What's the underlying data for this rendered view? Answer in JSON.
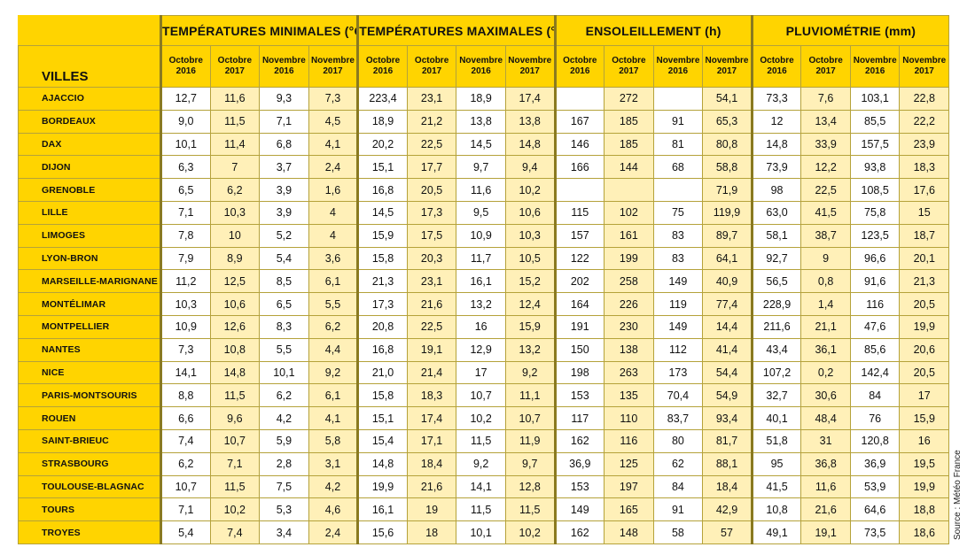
{
  "header": {
    "villes_label": "VILLES",
    "groups": [
      {
        "title": "TEMPÉRATURES MINIMALES (°C)"
      },
      {
        "title": "TEMPÉRATURES MAXIMALES (°C)"
      },
      {
        "title": "ENSOLEILLEMENT (h)"
      },
      {
        "title": "PLUVIOMÉTRIE (mm)"
      }
    ],
    "periods": [
      {
        "month": "Octobre",
        "year": "2016"
      },
      {
        "month": "Octobre",
        "year": "2017"
      },
      {
        "month": "Novembre",
        "year": "2016"
      },
      {
        "month": "Novembre",
        "year": "2017"
      }
    ]
  },
  "rows": [
    {
      "city": "AJACCIO",
      "vals": [
        "12,7",
        "11,6",
        "9,3",
        "7,3",
        "223,4",
        "23,1",
        "18,9",
        "17,4",
        "",
        "272",
        "",
        "54,1",
        "73,3",
        "7,6",
        "103,1",
        "22,8"
      ]
    },
    {
      "city": "BORDEAUX",
      "vals": [
        "9,0",
        "11,5",
        "7,1",
        "4,5",
        "18,9",
        "21,2",
        "13,8",
        "13,8",
        "167",
        "185",
        "91",
        "65,3",
        "12",
        "13,4",
        "85,5",
        "22,2"
      ]
    },
    {
      "city": "DAX",
      "vals": [
        "10,1",
        "11,4",
        "6,8",
        "4,1",
        "20,2",
        "22,5",
        "14,5",
        "14,8",
        "146",
        "185",
        "81",
        "80,8",
        "14,8",
        "33,9",
        "157,5",
        "23,9"
      ]
    },
    {
      "city": "DIJON",
      "vals": [
        "6,3",
        "7",
        "3,7",
        "2,4",
        "15,1",
        "17,7",
        "9,7",
        "9,4",
        "166",
        "144",
        "68",
        "58,8",
        "73,9",
        "12,2",
        "93,8",
        "18,3"
      ]
    },
    {
      "city": "GRENOBLE",
      "vals": [
        "6,5",
        "6,2",
        "3,9",
        "1,6",
        "16,8",
        "20,5",
        "11,6",
        "10,2",
        "",
        "",
        "",
        "71,9",
        "98",
        "22,5",
        "108,5",
        "17,6"
      ]
    },
    {
      "city": "LILLE",
      "vals": [
        "7,1",
        "10,3",
        "3,9",
        "4",
        "14,5",
        "17,3",
        "9,5",
        "10,6",
        "115",
        "102",
        "75",
        "119,9",
        "63,0",
        "41,5",
        "75,8",
        "15"
      ]
    },
    {
      "city": "LIMOGES",
      "vals": [
        "7,8",
        "10",
        "5,2",
        "4",
        "15,9",
        "17,5",
        "10,9",
        "10,3",
        "157",
        "161",
        "83",
        "89,7",
        "58,1",
        "38,7",
        "123,5",
        "18,7"
      ]
    },
    {
      "city": "LYON-BRON",
      "vals": [
        "7,9",
        "8,9",
        "5,4",
        "3,6",
        "15,8",
        "20,3",
        "11,7",
        "10,5",
        "122",
        "199",
        "83",
        "64,1",
        "92,7",
        "9",
        "96,6",
        "20,1"
      ]
    },
    {
      "city": "MARSEILLE-MARIGNANE",
      "vals": [
        "11,2",
        "12,5",
        "8,5",
        "6,1",
        "21,3",
        "23,1",
        "16,1",
        "15,2",
        "202",
        "258",
        "149",
        "40,9",
        "56,5",
        "0,8",
        "91,6",
        "21,3"
      ]
    },
    {
      "city": "MONTÉLIMAR",
      "vals": [
        "10,3",
        "10,6",
        "6,5",
        "5,5",
        "17,3",
        "21,6",
        "13,2",
        "12,4",
        "164",
        "226",
        "119",
        "77,4",
        "228,9",
        "1,4",
        "116",
        "20,5"
      ]
    },
    {
      "city": "MONTPELLIER",
      "vals": [
        "10,9",
        "12,6",
        "8,3",
        "6,2",
        "20,8",
        "22,5",
        "16",
        "15,9",
        "191",
        "230",
        "149",
        "14,4",
        "211,6",
        "21,1",
        "47,6",
        "19,9"
      ]
    },
    {
      "city": "NANTES",
      "vals": [
        "7,3",
        "10,8",
        "5,5",
        "4,4",
        "16,8",
        "19,1",
        "12,9",
        "13,2",
        "150",
        "138",
        "112",
        "41,4",
        "43,4",
        "36,1",
        "85,6",
        "20,6"
      ]
    },
    {
      "city": "NICE",
      "vals": [
        "14,1",
        "14,8",
        "10,1",
        "9,2",
        "21,0",
        "21,4",
        "17",
        "9,2",
        "198",
        "263",
        "173",
        "54,4",
        "107,2",
        "0,2",
        "142,4",
        "20,5"
      ]
    },
    {
      "city": "PARIS-MONTSOURIS",
      "vals": [
        "8,8",
        "11,5",
        "6,2",
        "6,1",
        "15,8",
        "18,3",
        "10,7",
        "11,1",
        "153",
        "135",
        "70,4",
        "54,9",
        "32,7",
        "30,6",
        "84",
        "17"
      ]
    },
    {
      "city": "ROUEN",
      "vals": [
        "6,6",
        "9,6",
        "4,2",
        "4,1",
        "15,1",
        "17,4",
        "10,2",
        "10,7",
        "117",
        "110",
        "83,7",
        "93,4",
        "40,1",
        "48,4",
        "76",
        "15,9"
      ]
    },
    {
      "city": "SAINT-BRIEUC",
      "vals": [
        "7,4",
        "10,7",
        "5,9",
        "5,8",
        "15,4",
        "17,1",
        "11,5",
        "11,9",
        "162",
        "116",
        "80",
        "81,7",
        "51,8",
        "31",
        "120,8",
        "16"
      ]
    },
    {
      "city": "STRASBOURG",
      "vals": [
        "6,2",
        "7,1",
        "2,8",
        "3,1",
        "14,8",
        "18,4",
        "9,2",
        "9,7",
        "36,9",
        "125",
        "62",
        "88,1",
        "95",
        "36,8",
        "36,9",
        "19,5"
      ]
    },
    {
      "city": "TOULOUSE-BLAGNAC",
      "vals": [
        "10,7",
        "11,5",
        "7,5",
        "4,2",
        "19,9",
        "21,6",
        "14,1",
        "12,8",
        "153",
        "197",
        "84",
        "18,4",
        "41,5",
        "11,6",
        "53,9",
        "19,9"
      ]
    },
    {
      "city": "TOURS",
      "vals": [
        "7,1",
        "10,2",
        "5,3",
        "4,6",
        "16,1",
        "19",
        "11,5",
        "11,5",
        "149",
        "165",
        "91",
        "42,9",
        "10,8",
        "21,6",
        "64,6",
        "18,8"
      ]
    },
    {
      "city": "TROYES",
      "vals": [
        "5,4",
        "7,4",
        "3,4",
        "2,4",
        "15,6",
        "18",
        "10,1",
        "10,2",
        "162",
        "148",
        "58",
        "57",
        "49,1",
        "19,1",
        "73,5",
        "18,6"
      ]
    }
  ],
  "source": "Source : Météo France"
}
